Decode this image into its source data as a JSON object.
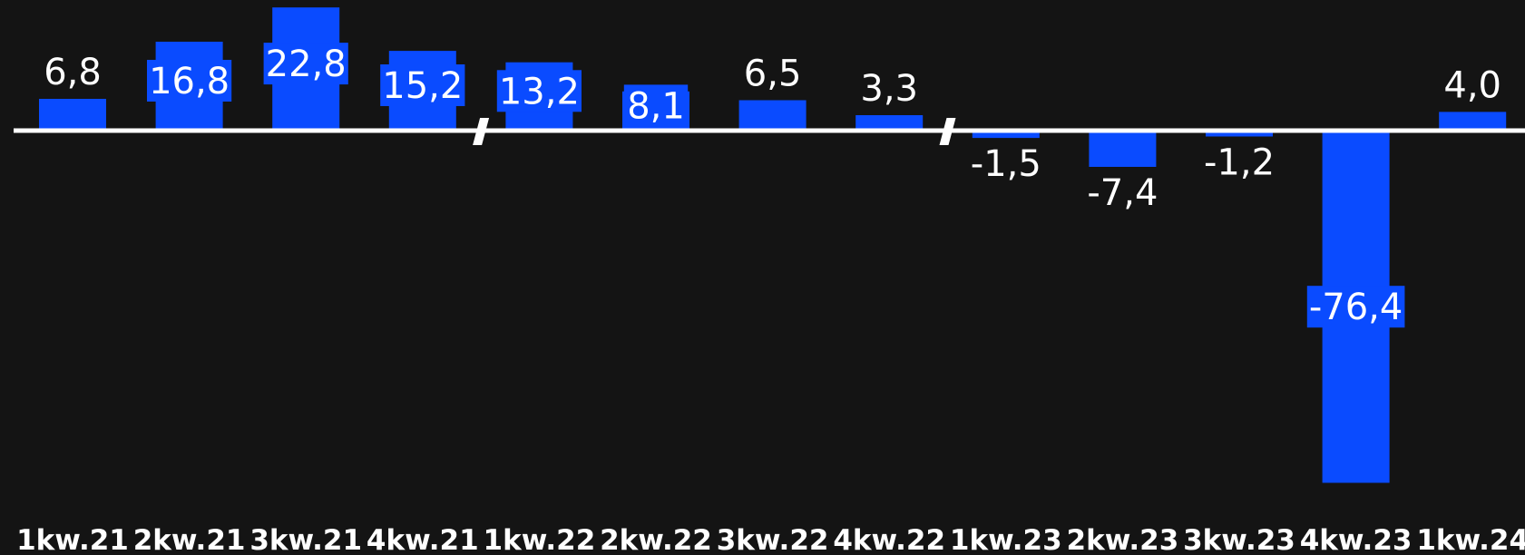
{
  "chart_data": {
    "type": "bar",
    "categories": [
      "1kw.21",
      "2kw.21",
      "3kw.21",
      "4kw.21",
      "1kw.22",
      "2kw.22",
      "3kw.22",
      "4kw.22",
      "1kw.23",
      "2kw.23",
      "3kw.23",
      "4kw.23",
      "1kw.24"
    ],
    "values": [
      6.8,
      16.8,
      22.8,
      15.2,
      13.2,
      8.1,
      6.5,
      3.3,
      -1.5,
      -7.4,
      -1.2,
      -76.4,
      4.0
    ],
    "value_labels": [
      "6,8",
      "16,8",
      "22,8",
      "15,2",
      "13,2",
      "8,1",
      "6,5",
      "3,3",
      "-1,5",
      "-7,4",
      "-1,2",
      "-76,4",
      "4,0"
    ],
    "axis_breaks_after": [
      "4kw.21",
      "4kw.22"
    ],
    "title": "",
    "xlabel": "",
    "ylabel": "",
    "grid": false,
    "legend": "none",
    "bar_color": "#0a4bff",
    "label_box_color": "#0a4bff",
    "axis_color": "#ffffff",
    "text_color": "#ffffff",
    "background_color": "#141414"
  }
}
